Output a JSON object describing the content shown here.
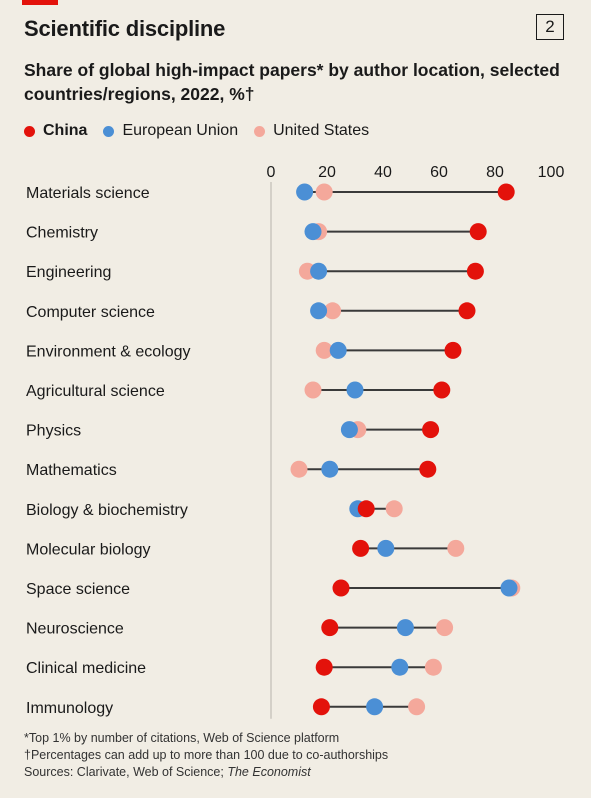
{
  "header": {
    "title": "Scientific discipline",
    "badge": "2",
    "subtitle": "Share of global high-impact papers* by author location, selected countries/regions, 2022, %†"
  },
  "colors": {
    "china": "#e3120b",
    "eu": "#4b8fd5",
    "us": "#f4a89b",
    "line": "#3a3a3a",
    "grid": "#b7b3ab",
    "background": "#f1ede4"
  },
  "chart_data": {
    "type": "dot",
    "xlim": [
      0,
      100
    ],
    "xticks": [
      0,
      20,
      40,
      60,
      80,
      100
    ],
    "legend_position": "top",
    "grid": false,
    "categories": [
      "Materials science",
      "Chemistry",
      "Engineering",
      "Computer science",
      "Environment & ecology",
      "Agricultural science",
      "Physics",
      "Mathematics",
      "Biology & biochemistry",
      "Molecular biology",
      "Space science",
      "Neuroscience",
      "Clinical medicine",
      "Immunology"
    ],
    "series": [
      {
        "name": "China",
        "color": "#e3120b",
        "values": [
          84,
          74,
          73,
          70,
          65,
          61,
          57,
          56,
          34,
          32,
          25,
          21,
          19,
          18
        ]
      },
      {
        "name": "European Union",
        "color": "#4b8fd5",
        "values": [
          12,
          15,
          17,
          17,
          24,
          30,
          28,
          21,
          31,
          41,
          85,
          48,
          46,
          37
        ]
      },
      {
        "name": "United States",
        "color": "#f4a89b",
        "values": [
          19,
          17,
          13,
          22,
          19,
          15,
          31,
          10,
          44,
          66,
          86,
          62,
          58,
          52
        ]
      }
    ]
  },
  "footnotes": [
    "*Top 1% by number of citations, Web of Science platform",
    "†Percentages can add up to more than 100 due to co-authorships"
  ],
  "sources": {
    "label": "Sources: Clarivate, Web of Science; ",
    "italic": "The Economist"
  }
}
